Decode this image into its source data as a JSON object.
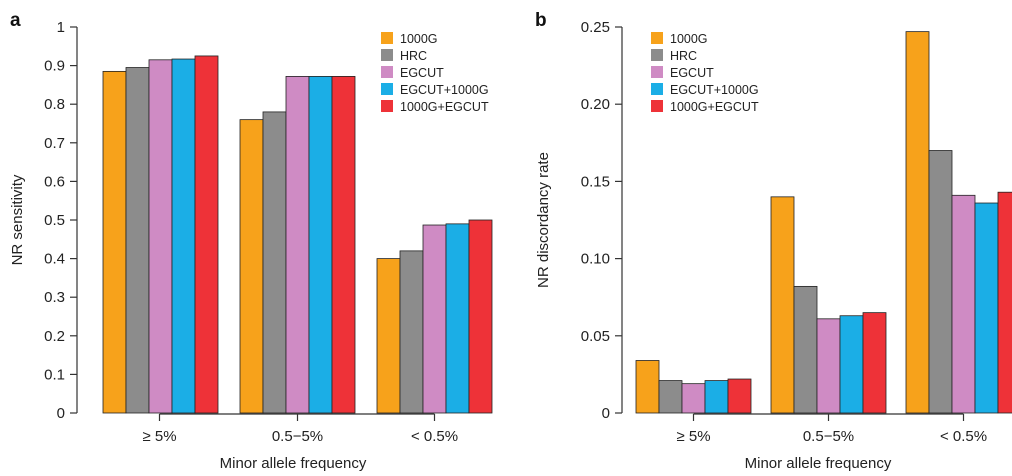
{
  "colors": {
    "1000G": "#F7A21B",
    "HRC": "#8C8C8C",
    "EGCUT": "#CF8BC4",
    "EGCUT+1000G": "#1BAEE6",
    "1000G+EGCUT": "#EE3238"
  },
  "chart_data": [
    {
      "panel": "a",
      "type": "bar",
      "xlabel": "Minor allele frequency",
      "ylabel": "NR sensitivity",
      "ylim": [
        0,
        1
      ],
      "yticks": [
        "0",
        "0.1",
        "0.2",
        "0.3",
        "0.4",
        "0.5",
        "0.6",
        "0.7",
        "0.8",
        "0.9",
        "1"
      ],
      "categories": [
        "≥ 5%",
        "0.5−5%",
        "< 0.5%"
      ],
      "legend_position": "top-right",
      "grid": false,
      "series": [
        {
          "name": "1000G",
          "values": [
            0.885,
            0.76,
            0.4
          ]
        },
        {
          "name": "HRC",
          "values": [
            0.895,
            0.78,
            0.42
          ]
        },
        {
          "name": "EGCUT",
          "values": [
            0.915,
            0.872,
            0.487
          ]
        },
        {
          "name": "EGCUT+1000G",
          "values": [
            0.917,
            0.872,
            0.49
          ]
        },
        {
          "name": "1000G+EGCUT",
          "values": [
            0.925,
            0.872,
            0.5
          ]
        }
      ]
    },
    {
      "panel": "b",
      "type": "bar",
      "xlabel": "Minor allele frequency",
      "ylabel": "NR discordancy rate",
      "ylim": [
        0,
        0.25
      ],
      "yticks": [
        "0",
        "0.05",
        "0.10",
        "0.15",
        "0.20",
        "0.25"
      ],
      "categories": [
        "≥ 5%",
        "0.5−5%",
        "< 0.5%"
      ],
      "legend_position": "top-left",
      "grid": false,
      "series": [
        {
          "name": "1000G",
          "values": [
            0.034,
            0.14,
            0.247
          ]
        },
        {
          "name": "HRC",
          "values": [
            0.021,
            0.082,
            0.17
          ]
        },
        {
          "name": "EGCUT",
          "values": [
            0.019,
            0.061,
            0.141
          ]
        },
        {
          "name": "EGCUT+1000G",
          "values": [
            0.021,
            0.063,
            0.136
          ]
        },
        {
          "name": "1000G+EGCUT",
          "values": [
            0.022,
            0.065,
            0.143
          ]
        }
      ]
    }
  ]
}
